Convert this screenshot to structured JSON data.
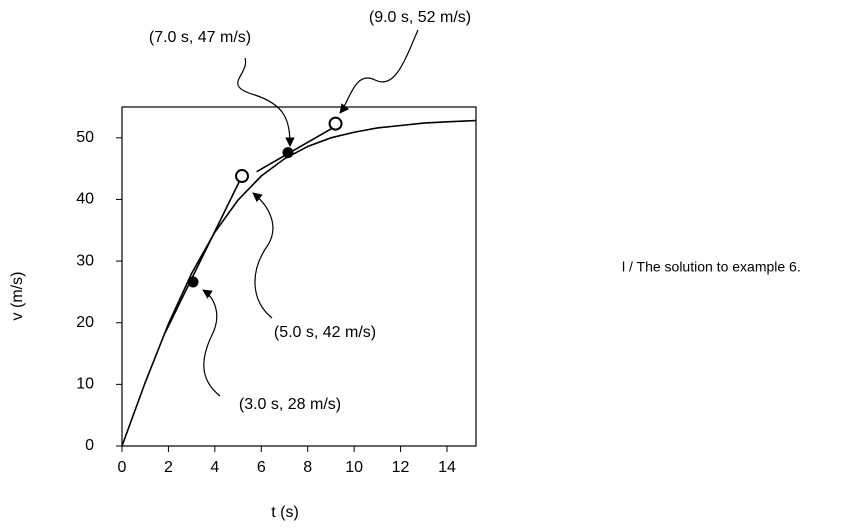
{
  "chart_data": {
    "type": "line",
    "xlabel": "t (s)",
    "ylabel": "v (m/s)",
    "xlim": [
      0,
      15.25
    ],
    "ylim": [
      0,
      55
    ],
    "xticks": [
      0,
      2,
      4,
      6,
      8,
      10,
      12,
      14
    ],
    "yticks": [
      0,
      10,
      20,
      30,
      40,
      50
    ],
    "grid": false,
    "series": [
      {
        "style": "line",
        "color": "#000000",
        "x": [
          0,
          1,
          2,
          3,
          4,
          5,
          6,
          7,
          8,
          9,
          10,
          11,
          12,
          13,
          14,
          15.25
        ],
        "values": [
          0,
          10.3,
          19.8,
          28.0,
          34.7,
          39.9,
          43.8,
          46.6,
          48.6,
          50.0,
          50.9,
          51.6,
          52.0,
          52.4,
          52.6,
          52.8
        ]
      },
      {
        "style": "line",
        "color": "#000000",
        "x": [
          1.85,
          5.17
        ],
        "values": [
          18.3,
          43.8
        ]
      },
      {
        "style": "line",
        "color": "#000000",
        "x": [
          5.8,
          9.4
        ],
        "values": [
          44.5,
          52.3
        ]
      },
      {
        "style": "filled",
        "color": "#000000",
        "x": [
          3.06,
          7.15
        ],
        "values": [
          26.6,
          47.6
        ]
      },
      {
        "style": "open",
        "color": "#000000",
        "x": [
          5.17,
          9.2
        ],
        "values": [
          43.8,
          52.3
        ]
      }
    ],
    "annotations": [
      "(7.0 s, 47 m/s)",
      "(9.0 s, 52 m/s)",
      "(5.0 s, 42 m/s)",
      "(3.0 s, 28 m/s)"
    ]
  },
  "caption": "l / The solution to example 6."
}
